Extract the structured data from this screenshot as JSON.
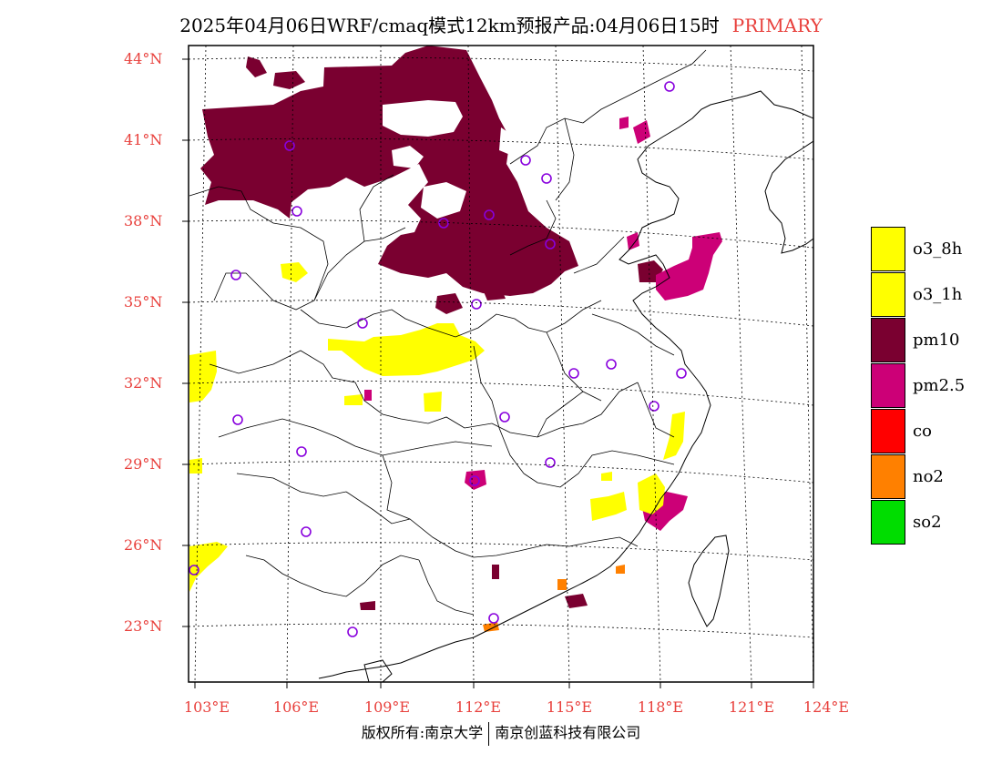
{
  "title": {
    "main": "2025年04月06日WRF/cmaq模式12km预报产品:04月06日15时",
    "product": "PRIMARY"
  },
  "axes": {
    "lat_labels": [
      "44°N",
      "41°N",
      "38°N",
      "35°N",
      "32°N",
      "29°N",
      "26°N",
      "23°N"
    ],
    "lon_labels": [
      "103°E",
      "106°E",
      "109°E",
      "112°E",
      "115°E",
      "118°E",
      "121°E",
      "124°E"
    ]
  },
  "legend": {
    "items": [
      {
        "label": "o3_8h",
        "color": "#ffff00"
      },
      {
        "label": "o3_1h",
        "color": "#ffff00"
      },
      {
        "label": "pm10",
        "color": "#7a0030"
      },
      {
        "label": "pm2.5",
        "color": "#cc0077"
      },
      {
        "label": "co",
        "color": "#ff0000"
      },
      {
        "label": "no2",
        "color": "#ff8000"
      },
      {
        "label": "so2",
        "color": "#00dd00"
      }
    ]
  },
  "footer": {
    "left": "版权所有:南京大学",
    "right": "南京创蓝科技有限公司"
  }
}
